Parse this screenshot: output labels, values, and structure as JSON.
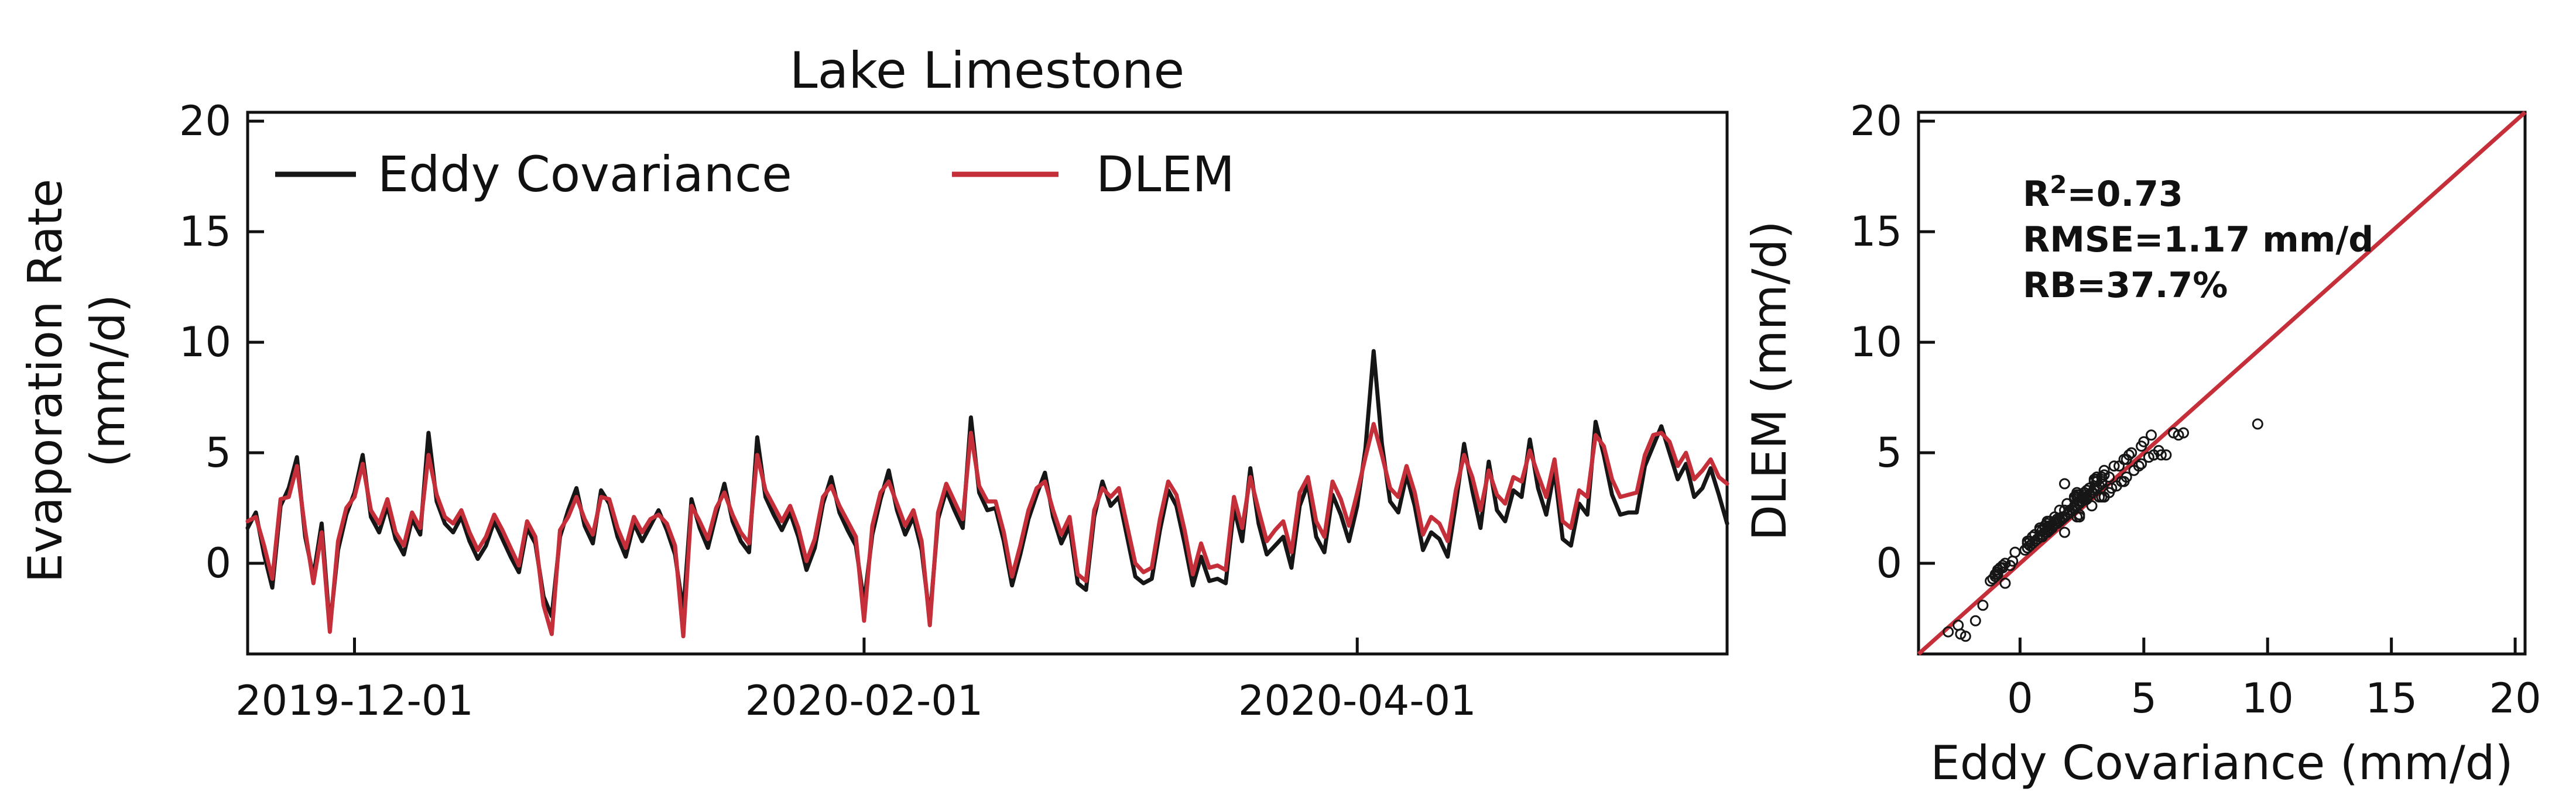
{
  "figure": {
    "title": "Lake Limestone",
    "background": "#ffffff"
  },
  "colors": {
    "eddy_covariance": "#161616",
    "dlem": "#c52f3a",
    "axis": "#111111"
  },
  "chart_data": [
    {
      "type": "line",
      "title": "Lake Limestone",
      "ylabel_line1": "Evaporation Rate",
      "ylabel_line2": "(mm/d)",
      "y_ticks": [
        0,
        5,
        10,
        15,
        20
      ],
      "y_tick_labels": [
        "0",
        "5",
        "10",
        "15",
        "20"
      ],
      "y_range": [
        -4.1,
        20.4
      ],
      "x_start_date": "2019-11-18",
      "x_step_days": 1,
      "x_range_days": [
        0,
        180
      ],
      "x_ticks": [
        {
          "day": 13,
          "label": "2019-12-01"
        },
        {
          "day": 75,
          "label": "2020-02-01"
        },
        {
          "day": 135,
          "label": "2020-04-01"
        }
      ],
      "grid": false,
      "legend_position": "upper-left-inside",
      "legend": [
        {
          "label": "Eddy Covariance",
          "color_key": "eddy_covariance"
        },
        {
          "label": "DLEM",
          "color_key": "dlem"
        }
      ],
      "series": [
        {
          "name": "Eddy Covariance",
          "color_key": "eddy_covariance",
          "values": [
            1.6,
            2.3,
            0.4,
            -1.1,
            2.6,
            3.4,
            4.8,
            1.2,
            -0.6,
            1.8,
            -2.9,
            0.6,
            2.2,
            3.2,
            4.9,
            2.1,
            1.4,
            2.6,
            1.1,
            0.4,
            2.0,
            1.3,
            5.9,
            2.8,
            1.8,
            1.4,
            2.1,
            1.0,
            0.2,
            0.8,
            1.9,
            1.1,
            0.3,
            -0.4,
            1.6,
            0.9,
            -1.5,
            -2.4,
            1.2,
            2.4,
            3.4,
            1.7,
            0.9,
            3.3,
            2.7,
            1.2,
            0.3,
            1.8,
            1.0,
            1.7,
            2.4,
            1.5,
            0.4,
            -2.2,
            2.9,
            1.6,
            0.7,
            2.2,
            3.6,
            1.9,
            1.0,
            0.5,
            5.7,
            3.0,
            2.2,
            1.5,
            2.3,
            1.2,
            -0.3,
            0.7,
            2.7,
            3.9,
            2.3,
            1.5,
            0.8,
            -1.8,
            1.3,
            2.9,
            4.2,
            2.4,
            1.3,
            2.1,
            0.6,
            -2.5,
            2.0,
            3.3,
            2.4,
            1.6,
            6.6,
            3.2,
            2.4,
            2.5,
            1.0,
            -1.0,
            0.4,
            2.0,
            3.1,
            4.1,
            2.1,
            0.9,
            1.7,
            -0.9,
            -1.2,
            2.1,
            3.7,
            2.6,
            3.0,
            1.2,
            -0.6,
            -0.9,
            -0.7,
            1.5,
            3.3,
            2.6,
            0.9,
            -1.0,
            0.3,
            -0.8,
            -0.7,
            -0.9,
            2.5,
            1.0,
            4.3,
            1.8,
            0.4,
            0.8,
            1.2,
            -0.2,
            2.6,
            3.6,
            1.2,
            0.5,
            3.1,
            2.2,
            1.0,
            2.6,
            5.2,
            9.6,
            5.4,
            2.8,
            2.3,
            4.0,
            2.6,
            0.6,
            1.4,
            1.1,
            0.3,
            2.7,
            5.4,
            3.3,
            1.6,
            4.6,
            2.4,
            1.9,
            3.3,
            3.0,
            5.6,
            3.4,
            2.2,
            4.2,
            1.1,
            0.8,
            2.7,
            2.2,
            6.4,
            4.9,
            3.1,
            2.2,
            2.3,
            2.3,
            4.4,
            5.3,
            6.2,
            5.0,
            3.8,
            4.5,
            3.0,
            3.4,
            4.3,
            3.1,
            1.8
          ]
        },
        {
          "name": "DLEM",
          "color_key": "dlem",
          "values": [
            1.9,
            2.1,
            0.8,
            -0.7,
            2.9,
            3.0,
            4.4,
            1.5,
            -0.9,
            1.4,
            -3.1,
            1.0,
            2.5,
            3.0,
            4.5,
            2.4,
            1.8,
            2.9,
            1.4,
            0.8,
            2.3,
            1.6,
            4.9,
            3.1,
            2.1,
            1.8,
            2.4,
            1.4,
            0.6,
            1.2,
            2.2,
            1.5,
            0.7,
            -0.1,
            1.9,
            1.2,
            -1.9,
            -3.2,
            1.5,
            2.1,
            3.0,
            2.0,
            1.3,
            3.0,
            2.9,
            1.6,
            0.7,
            2.1,
            1.4,
            2.0,
            2.2,
            1.8,
            0.8,
            -3.3,
            2.6,
            1.9,
            1.1,
            2.5,
            3.2,
            2.2,
            1.4,
            0.9,
            4.9,
            3.3,
            2.6,
            1.9,
            2.6,
            1.6,
            0.1,
            1.1,
            3.0,
            3.5,
            2.6,
            1.9,
            1.2,
            -2.6,
            1.7,
            3.2,
            3.7,
            2.7,
            1.7,
            2.4,
            1.0,
            -2.8,
            2.3,
            3.6,
            2.8,
            2.0,
            5.9,
            3.5,
            2.8,
            2.8,
            1.4,
            -0.6,
            0.8,
            2.4,
            3.4,
            3.7,
            2.4,
            1.3,
            2.1,
            -0.5,
            -0.8,
            2.4,
            3.4,
            3.0,
            3.4,
            1.7,
            0.0,
            -0.4,
            -0.2,
            2.0,
            3.7,
            3.1,
            1.5,
            -0.5,
            0.9,
            -0.2,
            -0.1,
            -0.3,
            3.0,
            1.6,
            3.9,
            2.4,
            1.0,
            1.5,
            1.9,
            0.5,
            3.2,
            3.9,
            1.9,
            1.2,
            3.7,
            2.9,
            1.7,
            3.2,
            4.8,
            6.3,
            4.9,
            3.4,
            3.0,
            4.4,
            3.2,
            1.3,
            2.1,
            1.8,
            1.0,
            3.3,
            4.9,
            3.9,
            2.4,
            4.2,
            3.1,
            2.7,
            3.9,
            3.7,
            5.1,
            4.0,
            3.0,
            4.7,
            1.9,
            1.6,
            3.3,
            3.0,
            5.8,
            5.3,
            3.8,
            3.0,
            3.1,
            3.2,
            4.9,
            5.8,
            5.9,
            5.5,
            4.4,
            5.0,
            3.8,
            4.2,
            4.7,
            3.9,
            3.6
          ]
        }
      ]
    },
    {
      "type": "scatter",
      "xlabel": "Eddy Covariance (mm/d)",
      "ylabel": "DLEM (mm/d)",
      "x_ticks": [
        0,
        5,
        10,
        15,
        20
      ],
      "x_tick_labels": [
        "0",
        "5",
        "10",
        "15",
        "20"
      ],
      "y_ticks": [
        0,
        5,
        10,
        15,
        20
      ],
      "y_tick_labels": [
        "0",
        "5",
        "10",
        "15",
        "20"
      ],
      "x_range": [
        -4.1,
        20.4
      ],
      "y_range": [
        -4.1,
        20.4
      ],
      "one_to_one_line": true,
      "one_to_one_color_key": "dlem",
      "marker": "open-circle",
      "points_source": "paired daily values of the two series (x = Eddy Covariance, y = DLEM)",
      "stats": {
        "r2_base": "R",
        "r2_sup": "2",
        "r2_value": "=0.73",
        "rmse": "RMSE=1.17 mm/d",
        "rb": "RB=37.7%"
      }
    }
  ]
}
